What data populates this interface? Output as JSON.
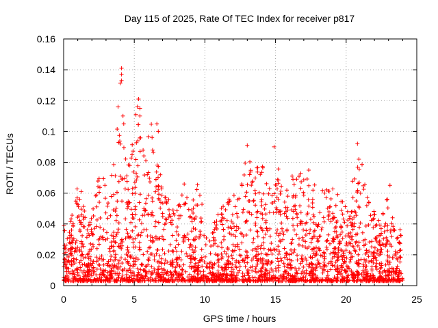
{
  "chart_data": {
    "type": "scatter",
    "title": "Day 115 of 2025, Rate Of TEC Index for receiver p817",
    "xlabel": "GPS time / hours",
    "ylabel": "ROTI / TECUs",
    "xlim": [
      0,
      25
    ],
    "ylim": [
      0,
      0.16
    ],
    "xticks": [
      "0",
      "5",
      "10",
      "15",
      "20",
      "25"
    ],
    "yticks": [
      "0",
      "0.02",
      "0.04",
      "0.06",
      "0.08",
      "0.1",
      "0.12",
      "0.14",
      "0.16"
    ],
    "grid": true,
    "marker": "plus",
    "color": "#ff0000",
    "envelope": {
      "description_hours": [
        0,
        0.3,
        0.7,
        1.0,
        1.3,
        1.7,
        2.0,
        2.4,
        2.8,
        3.2,
        3.6,
        4.0,
        4.2,
        4.5,
        4.8,
        5.2,
        5.5,
        5.8,
        6.2,
        6.6,
        7.0,
        7.5,
        8.0,
        8.5,
        9.0,
        9.5,
        10.0,
        10.5,
        11.0,
        11.5,
        12.0,
        12.5,
        13.0,
        13.5,
        14.0,
        14.5,
        15.0,
        15.5,
        16.0,
        16.5,
        17.0,
        17.5,
        18.0,
        18.5,
        19.0,
        19.5,
        20.0,
        20.5,
        21.0,
        21.5,
        22.0,
        22.5,
        23.0,
        23.5,
        24.0
      ],
      "upper_roti": [
        0.04,
        0.035,
        0.05,
        0.067,
        0.06,
        0.04,
        0.045,
        0.075,
        0.07,
        0.06,
        0.085,
        0.14,
        0.11,
        0.085,
        0.09,
        0.12,
        0.1,
        0.09,
        0.105,
        0.09,
        0.065,
        0.055,
        0.05,
        0.07,
        0.05,
        0.068,
        0.045,
        0.04,
        0.05,
        0.055,
        0.06,
        0.06,
        0.091,
        0.075,
        0.08,
        0.07,
        0.09,
        0.06,
        0.075,
        0.07,
        0.077,
        0.075,
        0.06,
        0.07,
        0.07,
        0.06,
        0.05,
        0.07,
        0.092,
        0.06,
        0.05,
        0.045,
        0.065,
        0.045,
        0.04
      ],
      "lower_roti": 0.003
    },
    "notable_points": [
      {
        "x": 4.1,
        "y": 0.141
      },
      {
        "x": 4.1,
        "y": 0.137
      },
      {
        "x": 4.1,
        "y": 0.133
      },
      {
        "x": 4.2,
        "y": 0.11
      },
      {
        "x": 5.3,
        "y": 0.121
      },
      {
        "x": 5.4,
        "y": 0.115
      },
      {
        "x": 5.4,
        "y": 0.11
      },
      {
        "x": 6.6,
        "y": 0.105
      },
      {
        "x": 6.7,
        "y": 0.1
      },
      {
        "x": 13.0,
        "y": 0.091
      },
      {
        "x": 14.9,
        "y": 0.09
      },
      {
        "x": 20.8,
        "y": 0.092
      },
      {
        "x": 20.9,
        "y": 0.082
      },
      {
        "x": 23.1,
        "y": 0.065
      }
    ]
  }
}
